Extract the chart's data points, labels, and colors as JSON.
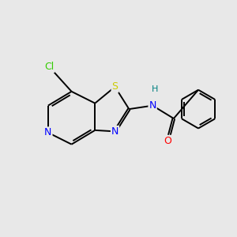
{
  "bg_color": "#e8e8e8",
  "bond_color": "#000000",
  "atom_colors": {
    "Cl": "#33cc00",
    "S": "#cccc00",
    "N": "#0000ff",
    "O": "#ff0000",
    "H": "#008080",
    "C": "#000000"
  },
  "bond_lw": 1.4,
  "double_sep": 0.09,
  "fontsize": 9
}
